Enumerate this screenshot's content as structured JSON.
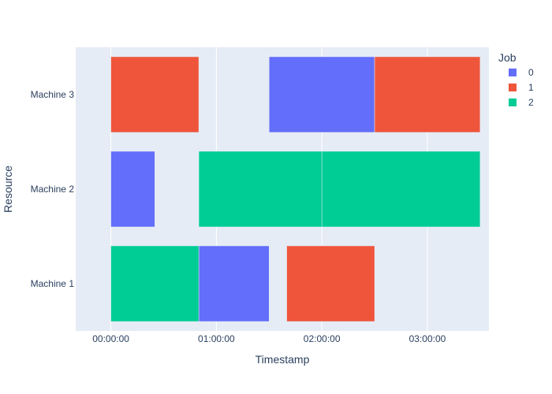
{
  "chart_data": {
    "type": "bar",
    "subtype": "gantt",
    "orientation": "horizontal",
    "xlabel": "Timestamp",
    "ylabel": "Resource",
    "x_ticks": [
      "00:00:00",
      "01:00:00",
      "02:00:00",
      "03:00:00"
    ],
    "x_range_minutes": [
      -20,
      215
    ],
    "categories": [
      "Machine 1",
      "Machine 2",
      "Machine 3"
    ],
    "legend": {
      "title": "Job",
      "position": "top-right"
    },
    "grid": true,
    "colors": {
      "background": "#e5ecf6",
      "grid": "#ffffff",
      "text": "#2a3f5f"
    },
    "series": [
      {
        "name": "0",
        "color": "#636efa",
        "tasks": [
          {
            "resource": "Machine 1",
            "start": "00:50:00",
            "end": "01:30:00"
          },
          {
            "resource": "Machine 2",
            "start": "00:00:00",
            "end": "00:25:00"
          },
          {
            "resource": "Machine 3",
            "start": "01:30:00",
            "end": "02:30:00"
          }
        ]
      },
      {
        "name": "1",
        "color": "#ef553b",
        "tasks": [
          {
            "resource": "Machine 3",
            "start": "00:00:00",
            "end": "00:50:00"
          },
          {
            "resource": "Machine 3",
            "start": "02:30:00",
            "end": "03:30:00"
          },
          {
            "resource": "Machine 1",
            "start": "01:40:00",
            "end": "02:30:00"
          }
        ]
      },
      {
        "name": "2",
        "color": "#00cc96",
        "tasks": [
          {
            "resource": "Machine 1",
            "start": "00:00:00",
            "end": "00:50:00"
          },
          {
            "resource": "Machine 2",
            "start": "00:50:00",
            "end": "02:00:00"
          },
          {
            "resource": "Machine 2",
            "start": "02:00:00",
            "end": "03:30:00"
          }
        ]
      }
    ]
  }
}
